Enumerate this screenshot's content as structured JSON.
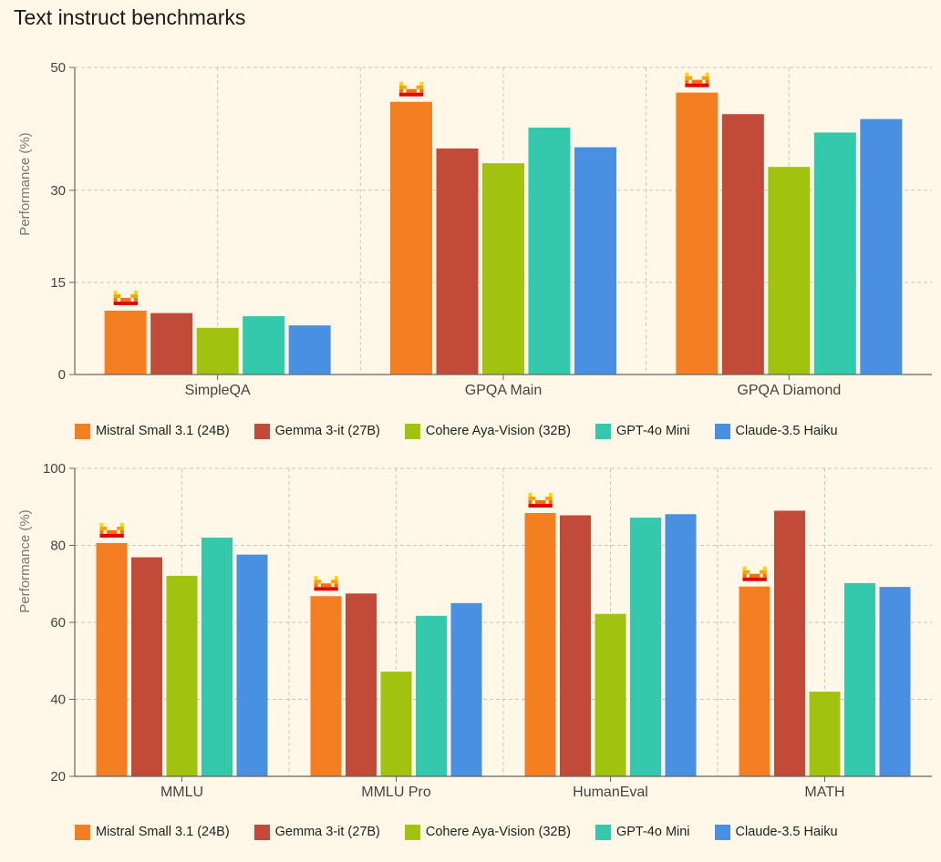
{
  "page_title": "Text instruct benchmarks",
  "colors": {
    "background": "#fff8e8",
    "grid": "#c8c8b8",
    "axis": "#666666",
    "text": "#444444",
    "series": [
      "#f47f22",
      "#c24a39",
      "#a1c20f",
      "#34c8ac",
      "#4a90e2"
    ]
  },
  "series_names": [
    "Mistral Small 3.1 (24B)",
    "Gemma 3-it (27B)",
    "Cohere Aya-Vision (32B)",
    "GPT-4o Mini",
    "Claude-3.5 Haiku"
  ],
  "marker_icon": "mistral-logo-icon",
  "chart_data": [
    {
      "type": "bar",
      "ylabel": "Performance (%)",
      "ylim": [
        0,
        50
      ],
      "yticks": [
        0,
        15,
        30,
        50
      ],
      "grid": true,
      "legend": "bottom",
      "categories": [
        "SimpleQA",
        "GPQA Main",
        "GPQA Diamond"
      ],
      "series": [
        {
          "name": "Mistral Small 3.1 (24B)",
          "values": [
            10.4,
            44.4,
            45.9
          ]
        },
        {
          "name": "Gemma 3-it (27B)",
          "values": [
            10.0,
            36.8,
            42.4
          ]
        },
        {
          "name": "Cohere Aya-Vision (32B)",
          "values": [
            7.6,
            34.4,
            33.8
          ]
        },
        {
          "name": "GPT-4o Mini",
          "values": [
            9.5,
            40.2,
            39.4
          ]
        },
        {
          "name": "Claude-3.5 Haiku",
          "values": [
            8.0,
            37.0,
            41.6
          ]
        }
      ],
      "best_markers": [
        [
          0,
          0
        ],
        [
          0,
          1
        ],
        [
          0,
          2
        ]
      ]
    },
    {
      "type": "bar",
      "ylabel": "Performance (%)",
      "ylim": [
        20,
        100
      ],
      "yticks": [
        20,
        40,
        60,
        80,
        100
      ],
      "grid": true,
      "legend": "bottom",
      "categories": [
        "MMLU",
        "MMLU Pro",
        "HumanEval",
        "MATH"
      ],
      "series": [
        {
          "name": "Mistral Small 3.1 (24B)",
          "values": [
            80.6,
            66.8,
            88.4,
            69.3
          ]
        },
        {
          "name": "Gemma 3-it (27B)",
          "values": [
            76.9,
            67.5,
            87.8,
            89.0
          ]
        },
        {
          "name": "Cohere Aya-Vision (32B)",
          "values": [
            72.1,
            47.2,
            62.2,
            42.0
          ]
        },
        {
          "name": "GPT-4o Mini",
          "values": [
            82.0,
            61.7,
            87.2,
            70.2
          ]
        },
        {
          "name": "Claude-3.5 Haiku",
          "values": [
            77.6,
            65.0,
            88.1,
            69.2
          ]
        }
      ],
      "best_markers": [
        [
          0,
          0
        ],
        [
          0,
          1
        ],
        [
          0,
          2
        ],
        [
          0,
          3
        ]
      ]
    }
  ]
}
